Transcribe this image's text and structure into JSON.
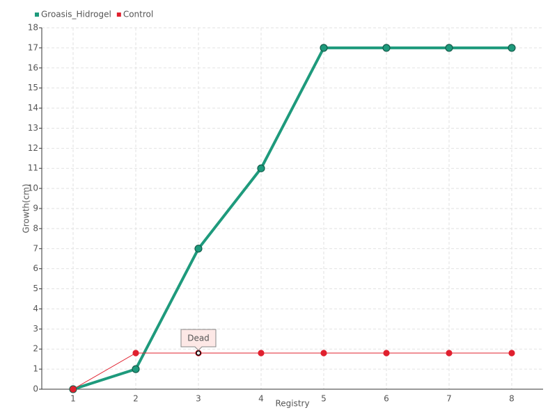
{
  "chart_data": {
    "type": "line",
    "x_label": "Registry",
    "y_label": "Growth(cm)",
    "categories": [
      "1",
      "2",
      "3",
      "4",
      "5",
      "6",
      "7",
      "8"
    ],
    "series": [
      {
        "name": "Groasis_Hidrogel",
        "color": "#1e9a7c",
        "values": [
          0,
          1,
          7,
          11,
          17,
          17,
          17,
          17
        ]
      },
      {
        "name": "Control",
        "color": "#e0202e",
        "values": [
          0,
          1.8,
          1.8,
          1.8,
          1.8,
          1.8,
          1.8,
          1.8
        ]
      }
    ],
    "ylim": [
      0,
      18
    ],
    "yticks": [
      0,
      1,
      2,
      3,
      4,
      5,
      6,
      7,
      8,
      9,
      10,
      11,
      12,
      13,
      14,
      15,
      16,
      17,
      18
    ],
    "grid": true,
    "legend": "top-left",
    "annotation": {
      "text": "Dead",
      "series": "Control",
      "x": "3"
    }
  }
}
